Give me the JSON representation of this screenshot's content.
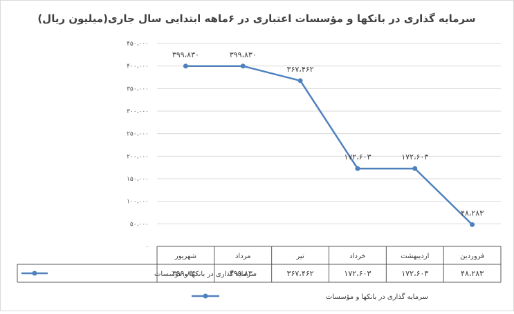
{
  "chart_data": {
    "type": "line",
    "title": "سرمایه گذاری در بانکها و مؤسسات اعتباری در ۶ماهه ابتدایی سال جاری(میلیون ریال)",
    "categories": [
      "فروردین",
      "اردیبهشت",
      "خرداد",
      "تیر",
      "مرداد",
      "شهریور"
    ],
    "series": [
      {
        "name": "سرمایه گذاری در بانکها و مؤسسات",
        "values": [
          48283,
          172603,
          172603,
          367462,
          399830,
          399830
        ],
        "labels": [
          "۴۸،۲۸۳",
          "۱۷۲،۶۰۳",
          "۱۷۲،۶۰۳",
          "۳۶۷،۴۶۲",
          "۳۹۹،۸۳۰",
          "۳۹۹،۸۳۰"
        ]
      }
    ],
    "ylim": [
      0,
      450000
    ],
    "yticks": [
      0,
      50000,
      100000,
      150000,
      200000,
      250000,
      300000,
      350000,
      400000,
      450000
    ],
    "ytick_labels": [
      "۰",
      "۵۰،۰۰۰",
      "۱۰۰،۰۰۰",
      "۱۵۰،۰۰۰",
      "۲۰۰،۰۰۰",
      "۲۵۰،۰۰۰",
      "۳۰۰،۰۰۰",
      "۳۵۰،۰۰۰",
      "۴۰۰،۰۰۰",
      "۴۵۰،۰۰۰"
    ],
    "xlabel": "",
    "ylabel": "",
    "grid": true,
    "data_table": true,
    "legend": "bottom",
    "colors": {
      "series": "#4f81bd",
      "grid": "#d9d9d9",
      "text": "#404040"
    }
  }
}
